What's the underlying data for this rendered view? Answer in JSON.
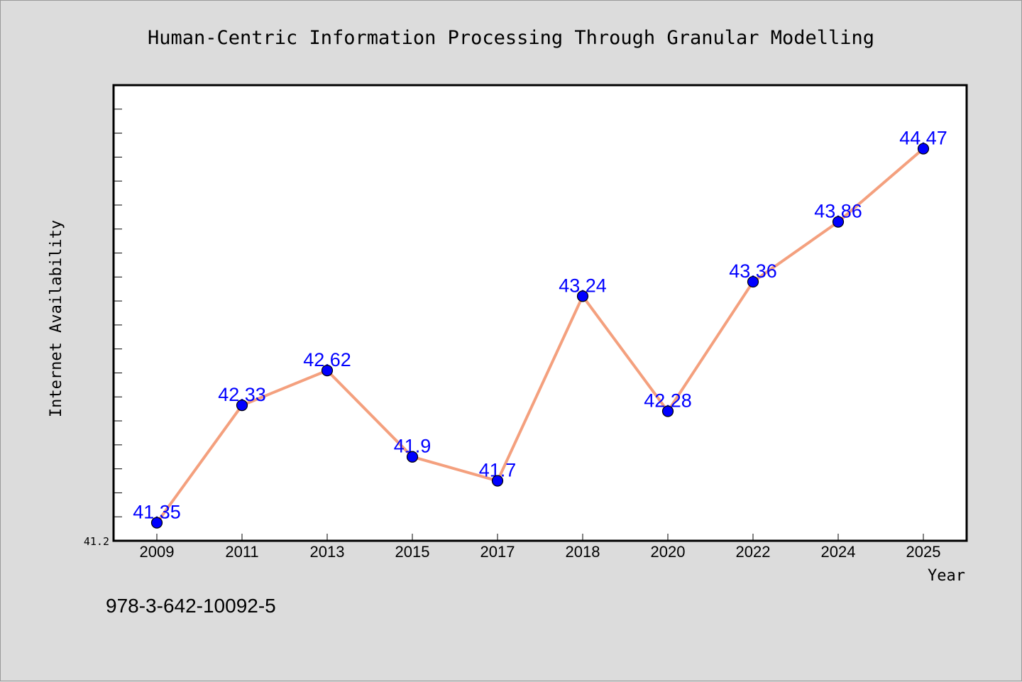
{
  "chart_data": {
    "type": "line",
    "title": "Human-Centric Information Processing Through Granular Modelling",
    "xlabel": "Year",
    "ylabel": "Internet Availability",
    "categories": [
      "2009",
      "2011",
      "2013",
      "2015",
      "2017",
      "2018",
      "2020",
      "2022",
      "2024",
      "2025"
    ],
    "series": [
      {
        "values": [
          41.35,
          42.33,
          42.62,
          41.9,
          41.7,
          43.24,
          42.28,
          43.36,
          43.86,
          44.47
        ]
      }
    ],
    "data_labels": [
      "41.35",
      "42.33",
      "42.62",
      "41.9",
      "41.7",
      "43.24",
      "42.28",
      "43.36",
      "43.86",
      "44.47"
    ],
    "ylim": [
      41.2,
      45.0
    ],
    "y_tick_label": "41.2",
    "grid": false,
    "legend": "none",
    "colors": {
      "line": "#f4a07e",
      "marker": "#0000ff",
      "data_label": "#0000ff",
      "plot_background": "#ffffff",
      "figure_background": "#dcdcdc"
    }
  },
  "footer": {
    "isbn": "978-3-642-10092-5"
  }
}
